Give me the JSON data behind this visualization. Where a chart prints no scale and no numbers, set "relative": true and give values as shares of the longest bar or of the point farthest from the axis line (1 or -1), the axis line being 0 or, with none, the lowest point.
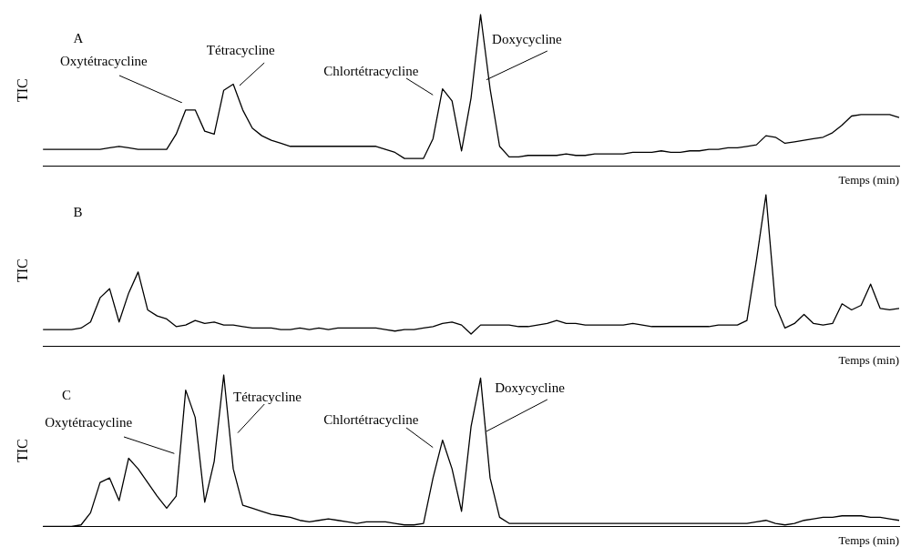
{
  "chart_data": [
    {
      "type": "line",
      "relative": true,
      "ylabel": "TIC",
      "xlabel": "Temps (min)",
      "tick_labels": false,
      "grid": false,
      "legend": false,
      "marker": "none",
      "line_style": "solid",
      "annotations": [
        "A",
        "Oxytétracycline",
        "Tétracycline",
        "Chlortétracycline",
        "Doxycycline"
      ],
      "categories": [
        null,
        null,
        null,
        null,
        null,
        null,
        null,
        null,
        null,
        null,
        null,
        null,
        null,
        null,
        null,
        null,
        null,
        null,
        null,
        null,
        null,
        null,
        null,
        null,
        null,
        null,
        null,
        null,
        null,
        null,
        null,
        null,
        null,
        null,
        null,
        null,
        null,
        null,
        null,
        null,
        null,
        null,
        null,
        null,
        null,
        null,
        null,
        null,
        null,
        null,
        null,
        null,
        null,
        null,
        null,
        null,
        null,
        null,
        null,
        null,
        null,
        null,
        null,
        null,
        null,
        null,
        null,
        null,
        null,
        null,
        null,
        null,
        null,
        null,
        null,
        null,
        null,
        null,
        null,
        null,
        null,
        null,
        null,
        null,
        null,
        null,
        null,
        null,
        null,
        null,
        null
      ],
      "series": [
        {
          "color": "#000000",
          "values": [
            0.11,
            0.11,
            0.11,
            0.11,
            0.11,
            0.11,
            0.11,
            0.12,
            0.13,
            0.12,
            0.11,
            0.11,
            0.11,
            0.11,
            0.21,
            0.37,
            0.37,
            0.23,
            0.21,
            0.5,
            0.54,
            0.37,
            0.25,
            0.2,
            0.17,
            0.15,
            0.13,
            0.13,
            0.13,
            0.13,
            0.13,
            0.13,
            0.13,
            0.13,
            0.13,
            0.13,
            0.11,
            0.09,
            0.05,
            0.05,
            0.05,
            0.18,
            0.51,
            0.43,
            0.1,
            0.45,
            1,
            0.51,
            0.13,
            0.06,
            0.06,
            0.07,
            0.07,
            0.07,
            0.07,
            0.08,
            0.07,
            0.07,
            0.08,
            0.08,
            0.08,
            0.08,
            0.09,
            0.09,
            0.09,
            0.1,
            0.09,
            0.09,
            0.1,
            0.1,
            0.11,
            0.11,
            0.12,
            0.12,
            0.13,
            0.14,
            0.2,
            0.19,
            0.15,
            0.16,
            0.17,
            0.18,
            0.19,
            0.22,
            0.27,
            0.33,
            0.34,
            0.34,
            0.34,
            0.34,
            0.32
          ]
        }
      ]
    },
    {
      "type": "line",
      "relative": true,
      "ylabel": "TIC",
      "xlabel": "Temps (min)",
      "tick_labels": false,
      "grid": false,
      "legend": false,
      "marker": "none",
      "line_style": "solid",
      "annotations": [
        "B"
      ],
      "categories": [
        null,
        null,
        null,
        null,
        null,
        null,
        null,
        null,
        null,
        null,
        null,
        null,
        null,
        null,
        null,
        null,
        null,
        null,
        null,
        null,
        null,
        null,
        null,
        null,
        null,
        null,
        null,
        null,
        null,
        null,
        null,
        null,
        null,
        null,
        null,
        null,
        null,
        null,
        null,
        null,
        null,
        null,
        null,
        null,
        null,
        null,
        null,
        null,
        null,
        null,
        null,
        null,
        null,
        null,
        null,
        null,
        null,
        null,
        null,
        null,
        null,
        null,
        null,
        null,
        null,
        null,
        null,
        null,
        null,
        null,
        null,
        null,
        null,
        null,
        null,
        null,
        null,
        null,
        null,
        null,
        null,
        null,
        null,
        null,
        null,
        null,
        null,
        null,
        null,
        null,
        null
      ],
      "series": [
        {
          "color": "#000000",
          "values": [
            0.11,
            0.11,
            0.11,
            0.11,
            0.12,
            0.16,
            0.32,
            0.38,
            0.16,
            0.35,
            0.49,
            0.24,
            0.2,
            0.18,
            0.13,
            0.14,
            0.17,
            0.15,
            0.16,
            0.14,
            0.14,
            0.13,
            0.12,
            0.12,
            0.12,
            0.11,
            0.11,
            0.12,
            0.11,
            0.12,
            0.11,
            0.12,
            0.12,
            0.12,
            0.12,
            0.12,
            0.11,
            0.1,
            0.11,
            0.11,
            0.12,
            0.13,
            0.15,
            0.16,
            0.14,
            0.08,
            0.14,
            0.14,
            0.14,
            0.14,
            0.13,
            0.13,
            0.14,
            0.15,
            0.17,
            0.15,
            0.15,
            0.14,
            0.14,
            0.14,
            0.14,
            0.14,
            0.15,
            0.14,
            0.13,
            0.13,
            0.13,
            0.13,
            0.13,
            0.13,
            0.13,
            0.14,
            0.14,
            0.14,
            0.17,
            0.57,
            1,
            0.27,
            0.12,
            0.15,
            0.21,
            0.15,
            0.14,
            0.15,
            0.28,
            0.24,
            0.27,
            0.41,
            0.25,
            0.24,
            0.25
          ]
        }
      ]
    },
    {
      "type": "line",
      "relative": true,
      "ylabel": "TIC",
      "xlabel": "Temps (min)",
      "tick_labels": false,
      "grid": false,
      "legend": false,
      "marker": "none",
      "line_style": "solid",
      "annotations": [
        "C",
        "Oxytétracycline",
        "Tétracycline",
        "Chlortétracycline",
        "Doxycycline"
      ],
      "categories": [
        null,
        null,
        null,
        null,
        null,
        null,
        null,
        null,
        null,
        null,
        null,
        null,
        null,
        null,
        null,
        null,
        null,
        null,
        null,
        null,
        null,
        null,
        null,
        null,
        null,
        null,
        null,
        null,
        null,
        null,
        null,
        null,
        null,
        null,
        null,
        null,
        null,
        null,
        null,
        null,
        null,
        null,
        null,
        null,
        null,
        null,
        null,
        null,
        null,
        null,
        null,
        null,
        null,
        null,
        null,
        null,
        null,
        null,
        null,
        null,
        null,
        null,
        null,
        null,
        null,
        null,
        null,
        null,
        null,
        null,
        null,
        null,
        null,
        null,
        null,
        null,
        null,
        null,
        null,
        null,
        null,
        null,
        null,
        null,
        null,
        null,
        null,
        null,
        null,
        null,
        null
      ],
      "series": [
        {
          "color": "#000000",
          "values": [
            0,
            0,
            0,
            0,
            0.01,
            0.09,
            0.29,
            0.32,
            0.17,
            0.45,
            0.38,
            0.29,
            0.2,
            0.12,
            0.2,
            0.9,
            0.72,
            0.16,
            0.43,
            1,
            0.38,
            0.14,
            0.12,
            0.1,
            0.08,
            0.07,
            0.06,
            0.04,
            0.03,
            0.04,
            0.05,
            0.04,
            0.03,
            0.02,
            0.03,
            0.03,
            0.03,
            0.02,
            0.01,
            0.01,
            0.02,
            0.32,
            0.57,
            0.38,
            0.1,
            0.66,
            0.98,
            0.32,
            0.06,
            0.02,
            0.02,
            0.02,
            0.02,
            0.02,
            0.02,
            0.02,
            0.02,
            0.02,
            0.02,
            0.02,
            0.02,
            0.02,
            0.02,
            0.02,
            0.02,
            0.02,
            0.02,
            0.02,
            0.02,
            0.02,
            0.02,
            0.02,
            0.02,
            0.02,
            0.02,
            0.03,
            0.04,
            0.02,
            0.01,
            0.02,
            0.04,
            0.05,
            0.06,
            0.06,
            0.07,
            0.07,
            0.07,
            0.06,
            0.06,
            0.05,
            0.04
          ]
        }
      ]
    }
  ]
}
